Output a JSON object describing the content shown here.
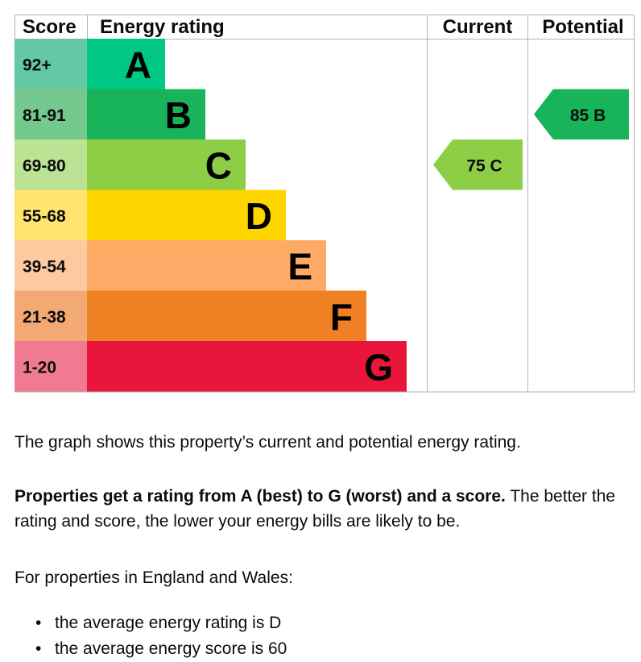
{
  "chart_data": {
    "type": "bar",
    "headers": {
      "score": "Score",
      "rating": "Energy rating",
      "current": "Current",
      "potential": "Potential"
    },
    "bands": [
      {
        "letter": "A",
        "range": "92+",
        "color": "#00c781",
        "score_color": "#64c8a5"
      },
      {
        "letter": "B",
        "range": "81-91",
        "color": "#19b459",
        "score_color": "#75c98e"
      },
      {
        "letter": "C",
        "range": "69-80",
        "color": "#8dce46",
        "score_color": "#bae393"
      },
      {
        "letter": "D",
        "range": "55-68",
        "color": "#ffd500",
        "score_color": "#ffe570"
      },
      {
        "letter": "E",
        "range": "39-54",
        "color": "#fcaa65",
        "score_color": "#fdcaa0"
      },
      {
        "letter": "F",
        "range": "21-38",
        "color": "#ef8023",
        "score_color": "#f3a974"
      },
      {
        "letter": "G",
        "range": "1-20",
        "color": "#e9153b",
        "score_color": "#f07a90"
      }
    ],
    "current": {
      "value": 75,
      "band": "C",
      "label": "75  C",
      "color": "#8dce46"
    },
    "potential": {
      "value": 85,
      "band": "B",
      "label": "85  B",
      "color": "#19b459"
    }
  },
  "text": {
    "intro": "The graph shows this property’s current and potential energy rating.",
    "rating_bold": "Properties get a rating from A (best) to G (worst) and a score.",
    "rating_rest": " The better the rating and score, the lower your energy bills are likely to be.",
    "region_intro": "For properties in England and Wales:",
    "average_rating": "the average energy rating is D",
    "average_score": "the average energy score is 60",
    "bullet": "•"
  }
}
